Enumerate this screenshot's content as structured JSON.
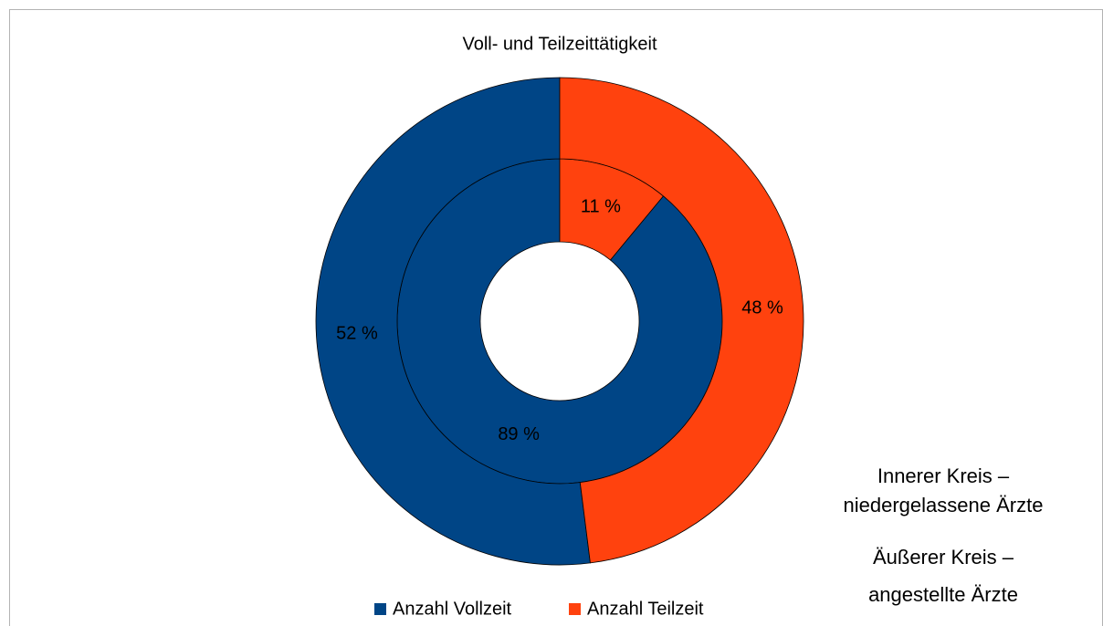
{
  "chart_data": {
    "type": "donut",
    "title": "Voll- und Teilzeittätigkeit",
    "categories": [
      "Anzahl Vollzeit",
      "Anzahl Teilzeit"
    ],
    "colors": [
      "#004586",
      "#ff420e"
    ],
    "series": [
      {
        "values": [
          89,
          11
        ],
        "value_labels": [
          "89 %",
          "11 %"
        ]
      },
      {
        "values": [
          52,
          48
        ],
        "value_labels": [
          "52 %",
          "48 %"
        ]
      }
    ],
    "annotations": [
      [
        "Innerer Kreis –",
        "niedergelassene Ärzte"
      ],
      [
        "Äußerer Kreis –",
        "angestellte Ärzte"
      ]
    ],
    "legend": "bottom"
  }
}
